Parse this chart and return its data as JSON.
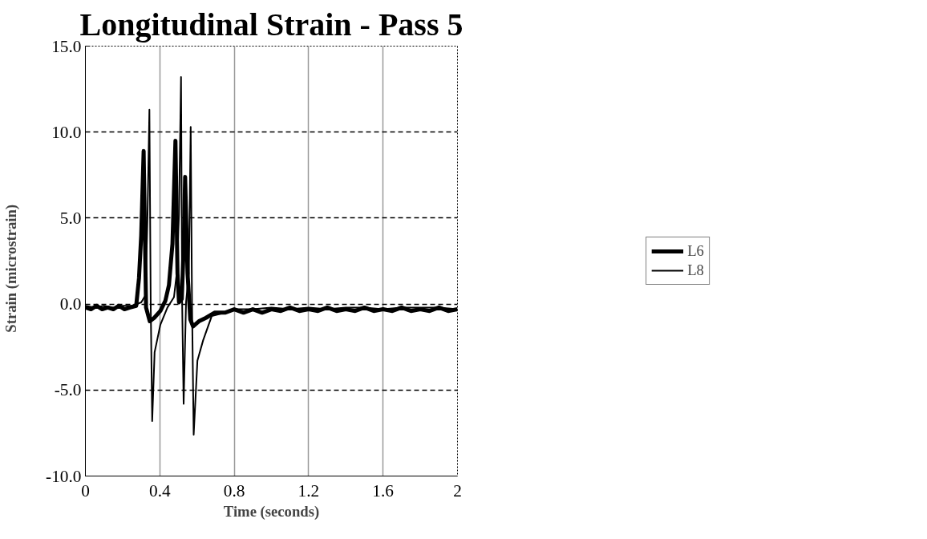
{
  "chart_data": {
    "type": "line",
    "title": "Longitudinal Strain - Pass 5",
    "xlabel": "Time (seconds)",
    "ylabel": "Strain     (microstrain)",
    "xlim": [
      0,
      2
    ],
    "xticks": [
      0,
      0.4,
      0.8,
      1.2,
      1.6,
      2
    ],
    "ylim": [
      -10,
      15
    ],
    "yticks": [
      {
        "value": -10,
        "label": "-10.0"
      },
      {
        "value": -5,
        "label": "-5.0"
      },
      {
        "value": 0,
        "label": "0.0"
      },
      {
        "value": 5,
        "label": "5.0"
      },
      {
        "value": 10,
        "label": "10.0"
      },
      {
        "value": 15,
        "label": "15.0"
      }
    ],
    "grid": true,
    "legend": "right",
    "line_style": "solid",
    "marker": "none",
    "series": [
      {
        "name": "L6",
        "color": "#000000",
        "x": [
          0,
          0.03,
          0.06,
          0.09,
          0.12,
          0.15,
          0.18,
          0.21,
          0.24,
          0.273,
          0.288,
          0.3,
          0.313,
          0.32,
          0.326,
          0.346,
          0.37,
          0.403,
          0.43,
          0.449,
          0.468,
          0.484,
          0.495,
          0.503,
          0.518,
          0.529,
          0.536,
          0.549,
          0.564,
          0.579,
          0.61,
          0.648,
          0.694,
          0.75,
          0.8,
          0.85,
          0.9,
          0.95,
          1.0,
          1.05,
          1.1,
          1.15,
          1.2,
          1.25,
          1.3,
          1.35,
          1.4,
          1.45,
          1.5,
          1.55,
          1.6,
          1.65,
          1.7,
          1.75,
          1.8,
          1.85,
          1.9,
          1.95,
          2.0
        ],
        "values": [
          -0.2,
          -0.3,
          -0.1,
          -0.3,
          -0.2,
          -0.3,
          -0.1,
          -0.3,
          -0.2,
          -0.1,
          1.5,
          4.0,
          8.9,
          4.0,
          -0.2,
          -1.0,
          -0.8,
          -0.4,
          0.2,
          1.1,
          3.5,
          9.5,
          1.8,
          0.1,
          0.3,
          3.5,
          7.4,
          1.8,
          -0.9,
          -1.3,
          -1.0,
          -0.8,
          -0.5,
          -0.5,
          -0.3,
          -0.5,
          -0.3,
          -0.5,
          -0.3,
          -0.4,
          -0.2,
          -0.4,
          -0.3,
          -0.4,
          -0.2,
          -0.4,
          -0.3,
          -0.4,
          -0.2,
          -0.4,
          -0.3,
          -0.4,
          -0.2,
          -0.4,
          -0.3,
          -0.4,
          -0.2,
          -0.4,
          -0.3
        ]
      },
      {
        "name": "L8",
        "color": "#000000",
        "x": [
          0,
          0.05,
          0.1,
          0.15,
          0.2,
          0.25,
          0.3,
          0.311,
          0.323,
          0.334,
          0.344,
          0.351,
          0.359,
          0.372,
          0.403,
          0.441,
          0.476,
          0.491,
          0.503,
          0.514,
          0.52,
          0.528,
          0.541,
          0.556,
          0.566,
          0.573,
          0.582,
          0.602,
          0.633,
          0.679,
          0.75,
          0.8,
          0.9,
          1.0,
          1.1,
          1.2,
          1.3,
          1.4,
          1.5,
          1.6,
          1.7,
          1.8,
          1.9,
          2.0
        ],
        "values": [
          -0.1,
          -0.2,
          -0.1,
          -0.2,
          -0.1,
          -0.1,
          0.1,
          0.3,
          0.5,
          5.2,
          11.3,
          0.1,
          -6.8,
          -2.8,
          -1.2,
          -0.2,
          0.4,
          1.8,
          5.2,
          13.2,
          0.1,
          -5.8,
          0.1,
          1.8,
          10.3,
          0.1,
          -7.6,
          -3.3,
          -2.1,
          -0.7,
          -0.5,
          -0.3,
          -0.3,
          -0.2,
          -0.3,
          -0.2,
          -0.3,
          -0.2,
          -0.2,
          -0.3,
          -0.2,
          -0.2,
          -0.2,
          -0.3
        ]
      }
    ]
  }
}
